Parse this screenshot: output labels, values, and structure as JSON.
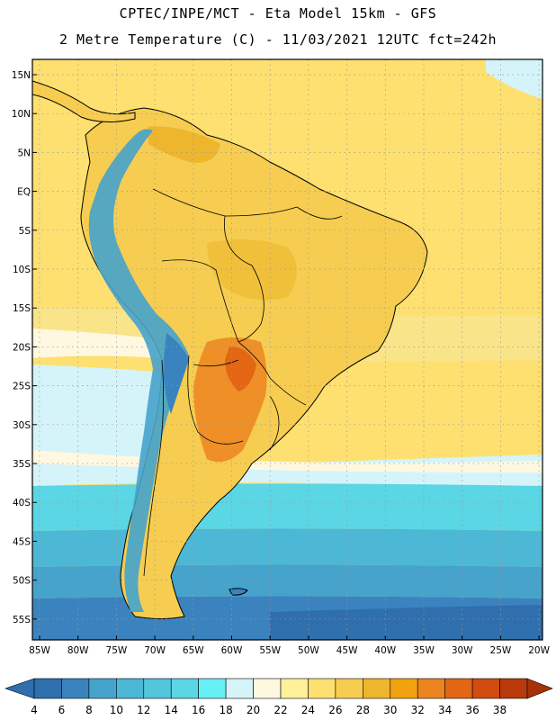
{
  "title_line1": "CPTEC/INPE/MCT -  Eta Model 15km - GFS",
  "title_line2": "2 Metre Temperature (C) - 11/03/2021 12UTC fct=242h",
  "lat_labels": [
    "15N",
    "10N",
    "5N",
    "EQ",
    "5S",
    "10S",
    "15S",
    "20S",
    "25S",
    "30S",
    "35S",
    "40S",
    "45S",
    "50S",
    "55S"
  ],
  "lon_labels": [
    "85W",
    "80W",
    "75W",
    "70W",
    "65W",
    "60W",
    "55W",
    "50W",
    "45W",
    "40W",
    "35W",
    "30W",
    "25W",
    "20W"
  ],
  "colorbar": {
    "labels": [
      "4",
      "6",
      "8",
      "10",
      "12",
      "14",
      "16",
      "18",
      "20",
      "22",
      "24",
      "26",
      "28",
      "30",
      "32",
      "34",
      "36",
      "38"
    ],
    "colors": [
      "#2f6fae",
      "#3a83bf",
      "#45a3cc",
      "#4db7d6",
      "#52c6dc",
      "#5ad6e4",
      "#66f0f4",
      "#d4f4fa",
      "#fff8e0",
      "#fff09a",
      "#fde070",
      "#f6cd50",
      "#eeb62c",
      "#f2a20e",
      "#ec8420",
      "#e26614",
      "#d14b10",
      "#b83a0a"
    ]
  },
  "fields": [
    {
      "name": "ocean-south-temperature",
      "color": "#2f6fae"
    },
    {
      "name": "land-warm-temperature",
      "color": "#f6cd50"
    },
    {
      "name": "land-hot-temperature",
      "color": "#ec8420"
    },
    {
      "name": "andes-cold-temperature",
      "color": "#45a3cc"
    }
  ]
}
